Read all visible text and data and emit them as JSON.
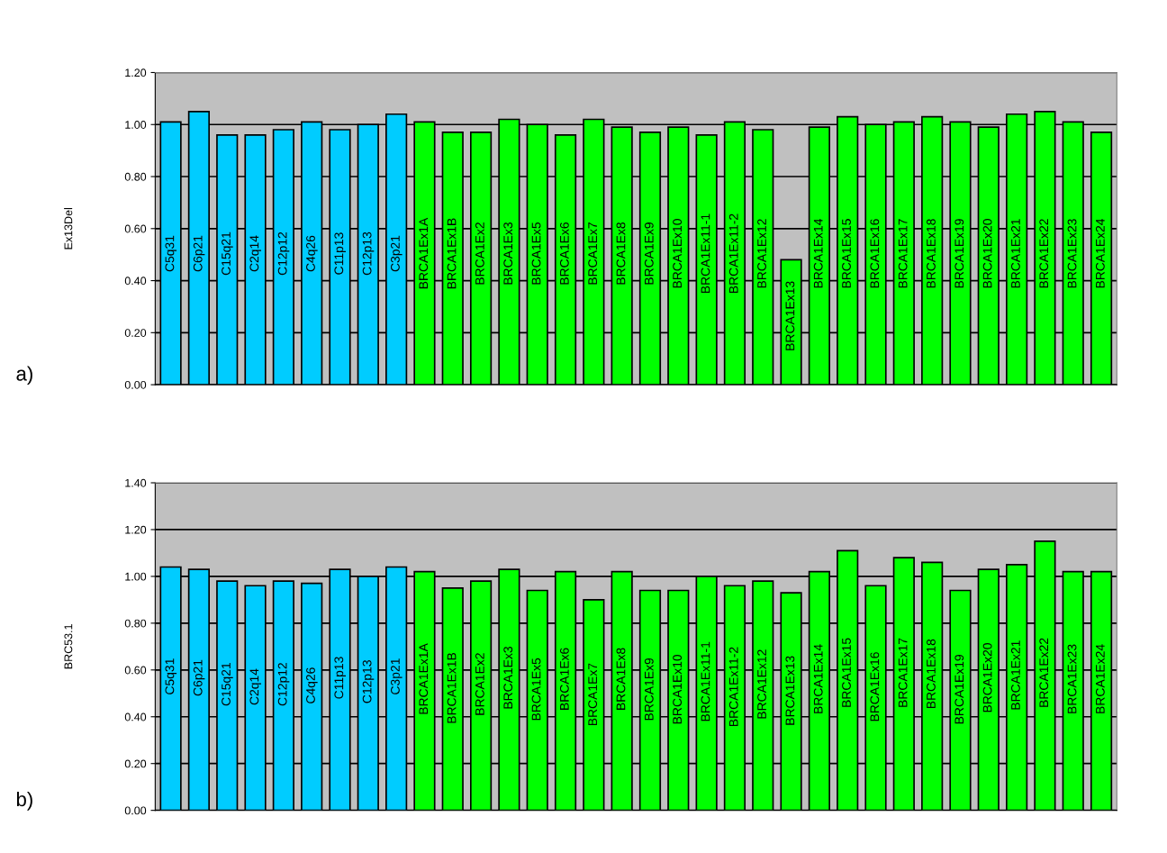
{
  "chart_data": [
    {
      "type": "bar",
      "ylabel": "Ex13Del",
      "annotations": [
        "a)"
      ],
      "grid": "y",
      "ylim": [
        0,
        1.2
      ],
      "yticks": [
        {
          "value": 0,
          "label": "0.00"
        },
        {
          "value": 0.2,
          "label": "0.20"
        },
        {
          "value": 0.4,
          "label": "0.40"
        },
        {
          "value": 0.6,
          "label": "0.60"
        },
        {
          "value": 0.8,
          "label": "0.80"
        },
        {
          "value": 1.0,
          "label": "1.00"
        },
        {
          "value": 1.2,
          "label": "1.20"
        }
      ],
      "categories": [
        "C5q31",
        "C6p21",
        "C15q21",
        "C2q14",
        "C12p12",
        "C4q26",
        "C11p13",
        "C12p13",
        "C3p21",
        "BRCA1Ex1A",
        "BRCA1Ex1B",
        "BRCA1Ex2",
        "BRCA1Ex3",
        "BRCA1Ex5",
        "BRCA1Ex6",
        "BRCA1Ex7",
        "BRCA1Ex8",
        "BRCA1Ex9",
        "BRCA1Ex10",
        "BRCA1Ex11-1",
        "BRCA1Ex11-2",
        "BRCA1Ex12",
        "BRCA1Ex13",
        "BRCA1Ex14",
        "BRCA1Ex15",
        "BRCA1Ex16",
        "BRCA1Ex17",
        "BRCA1Ex18",
        "BRCA1Ex19",
        "BRCA1Ex20",
        "BRCA1Ex21",
        "BRCA1Ex22",
        "BRCA1Ex23",
        "BRCA1Ex24"
      ],
      "values": [
        1.01,
        1.05,
        0.96,
        0.96,
        0.98,
        1.01,
        0.98,
        1.0,
        1.04,
        1.01,
        0.97,
        0.97,
        1.02,
        1.0,
        0.96,
        1.02,
        0.99,
        0.97,
        0.99,
        0.96,
        1.01,
        0.98,
        0.48,
        0.99,
        1.03,
        1.0,
        1.01,
        1.03,
        1.01,
        0.99,
        1.04,
        1.05,
        1.01,
        0.97
      ],
      "colors": [
        "#00ccff",
        "#00ccff",
        "#00ccff",
        "#00ccff",
        "#00ccff",
        "#00ccff",
        "#00ccff",
        "#00ccff",
        "#00ccff",
        "#00ff00",
        "#00ff00",
        "#00ff00",
        "#00ff00",
        "#00ff00",
        "#00ff00",
        "#00ff00",
        "#00ff00",
        "#00ff00",
        "#00ff00",
        "#00ff00",
        "#00ff00",
        "#00ff00",
        "#00ff00",
        "#00ff00",
        "#00ff00",
        "#00ff00",
        "#00ff00",
        "#00ff00",
        "#00ff00",
        "#00ff00",
        "#00ff00",
        "#00ff00",
        "#00ff00",
        "#00ff00"
      ]
    },
    {
      "type": "bar",
      "ylabel": "BRC53.1",
      "annotations": [
        "b)"
      ],
      "grid": "y",
      "ylim": [
        0,
        1.4
      ],
      "yticks": [
        {
          "value": 0,
          "label": "0.00"
        },
        {
          "value": 0.2,
          "label": "0.20"
        },
        {
          "value": 0.4,
          "label": "0.40"
        },
        {
          "value": 0.6,
          "label": "0.60"
        },
        {
          "value": 0.8,
          "label": "0.80"
        },
        {
          "value": 1.0,
          "label": "1.00"
        },
        {
          "value": 1.2,
          "label": "1.20"
        },
        {
          "value": 1.4,
          "label": "1.40"
        }
      ],
      "categories": [
        "C5q31",
        "C6p21",
        "C15q21",
        "C2q14",
        "C12p12",
        "C4q26",
        "C11p13",
        "C12p13",
        "C3p21",
        "BRCA1Ex1A",
        "BRCA1Ex1B",
        "BRCA1Ex2",
        "BRCA1Ex3",
        "BRCA1Ex5",
        "BRCA1Ex6",
        "BRCA1Ex7",
        "BRCA1Ex8",
        "BRCA1Ex9",
        "BRCA1Ex10",
        "BRCA1Ex11-1",
        "BRCA1Ex11-2",
        "BRCA1Ex12",
        "BRCA1Ex13",
        "BRCA1Ex14",
        "BRCA1Ex15",
        "BRCA1Ex16",
        "BRCA1Ex17",
        "BRCA1Ex18",
        "BRCA1Ex19",
        "BRCA1Ex20",
        "BRCA1Ex21",
        "BRCA1Ex22",
        "BRCA1Ex23",
        "BRCA1Ex24"
      ],
      "values": [
        1.04,
        1.03,
        0.98,
        0.96,
        0.98,
        0.97,
        1.03,
        1.0,
        1.04,
        1.02,
        0.95,
        0.98,
        1.03,
        0.94,
        1.02,
        0.9,
        1.02,
        0.94,
        0.94,
        1.0,
        0.96,
        0.98,
        0.93,
        1.02,
        1.11,
        0.96,
        1.08,
        1.06,
        0.94,
        1.03,
        1.05,
        1.15,
        1.02,
        1.02
      ],
      "colors": [
        "#00ccff",
        "#00ccff",
        "#00ccff",
        "#00ccff",
        "#00ccff",
        "#00ccff",
        "#00ccff",
        "#00ccff",
        "#00ccff",
        "#00ff00",
        "#00ff00",
        "#00ff00",
        "#00ff00",
        "#00ff00",
        "#00ff00",
        "#00ff00",
        "#00ff00",
        "#00ff00",
        "#00ff00",
        "#00ff00",
        "#00ff00",
        "#00ff00",
        "#00ff00",
        "#00ff00",
        "#00ff00",
        "#00ff00",
        "#00ff00",
        "#00ff00",
        "#00ff00",
        "#00ff00",
        "#00ff00",
        "#00ff00",
        "#00ff00",
        "#00ff00"
      ]
    }
  ]
}
